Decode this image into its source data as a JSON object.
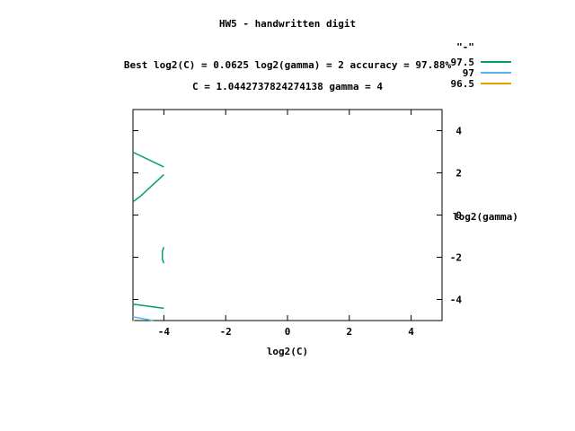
{
  "chart_data": {
    "type": "line",
    "title": "HW5 - handwritten digit",
    "subtitle_lines": [
      "Best log2(C) = 0.0625  log2(gamma) = 2  accuracy = 97.88%",
      "C = 1.0442737824274138  gamma = 4"
    ],
    "xlabel": "log2(C)",
    "ylabel": "log2(gamma)",
    "xlim": [
      -5,
      5
    ],
    "ylim": [
      -5,
      5
    ],
    "x_ticks": [
      -4,
      -2,
      0,
      2,
      4
    ],
    "y_ticks": [
      -4,
      -2,
      0,
      2,
      4
    ],
    "legend_title": "\"-\"",
    "legend_position": "top-right",
    "series": [
      {
        "name": "97.5",
        "color": "#009e73",
        "segments": [
          [
            [
              -5.0,
              2.98
            ],
            [
              -4.0,
              2.28
            ]
          ],
          [
            [
              -4.0,
              1.92
            ],
            [
              -4.75,
              0.9
            ],
            [
              -4.92,
              0.72
            ],
            [
              -5.0,
              0.62
            ]
          ],
          [
            [
              -4.0,
              -1.52
            ],
            [
              -4.05,
              -1.72
            ],
            [
              -4.05,
              -2.1
            ],
            [
              -4.0,
              -2.28
            ]
          ],
          [
            [
              -5.0,
              -4.22
            ],
            [
              -4.0,
              -4.42
            ]
          ]
        ]
      },
      {
        "name": "97",
        "color": "#56b4e9",
        "segments": [
          [
            [
              -5.0,
              -4.82
            ],
            [
              -4.35,
              -5.0
            ]
          ]
        ]
      },
      {
        "name": "96.5",
        "color": "#e69f00",
        "segments": [
          [
            [
              -5.0,
              -5.0
            ],
            [
              -4.95,
              -5.0
            ]
          ]
        ]
      }
    ]
  }
}
